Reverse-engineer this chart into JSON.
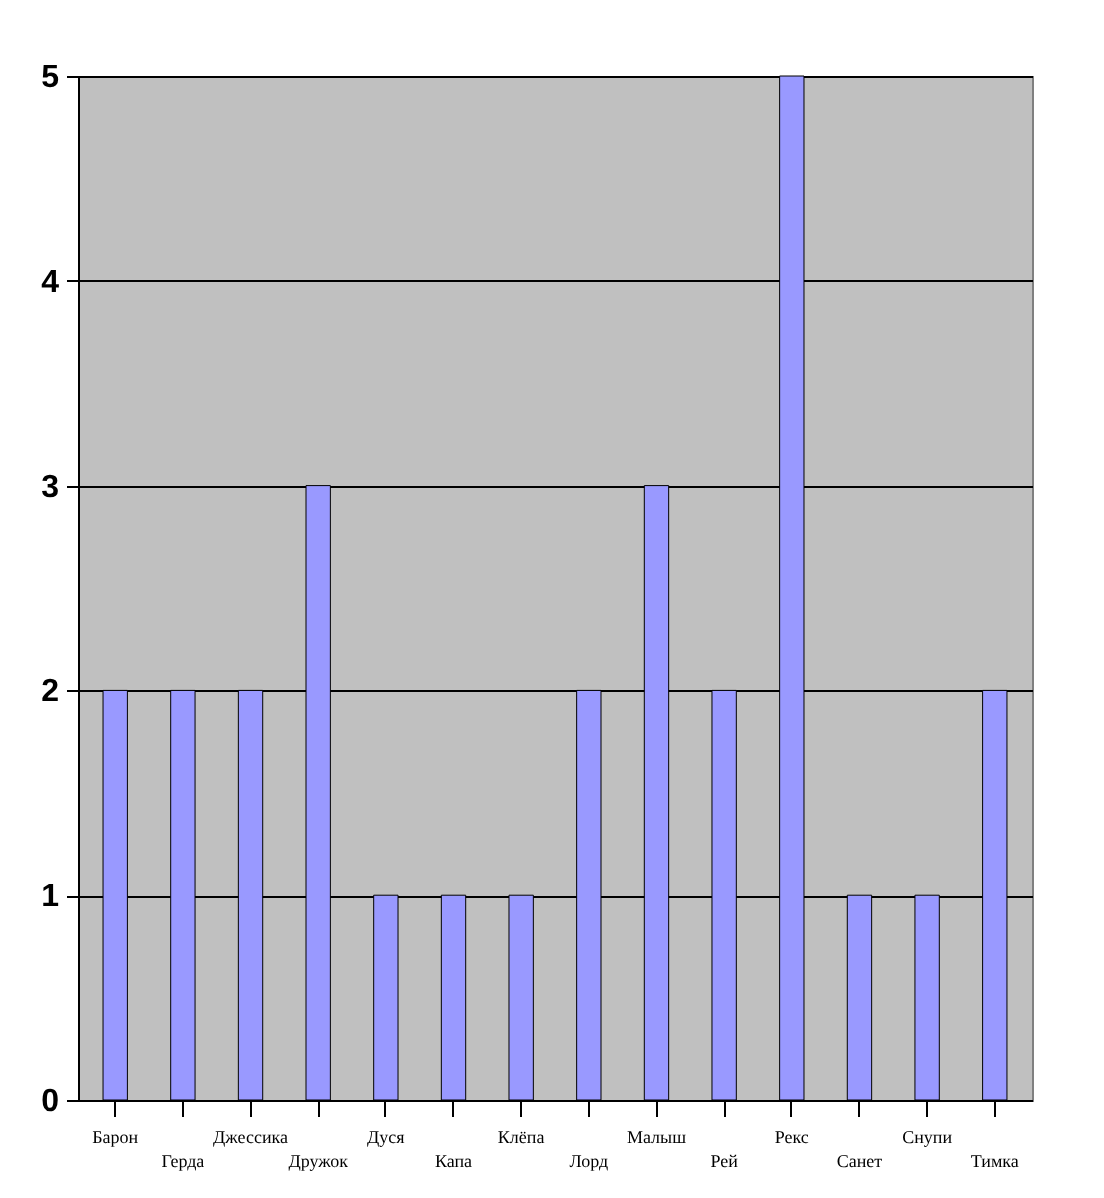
{
  "chart_data": {
    "type": "bar",
    "categories": [
      "Барон",
      "Герда",
      "Джессика",
      "Дружок",
      "Дуся",
      "Капа",
      "Клёпа",
      "Лорд",
      "Малыш",
      "Рей",
      "Рекс",
      "Санет",
      "Снупи",
      "Тимка"
    ],
    "values": [
      2,
      2,
      2,
      3,
      1,
      1,
      1,
      2,
      3,
      2,
      5,
      1,
      1,
      2
    ],
    "color": "#9999ff",
    "ylim": [
      0,
      5
    ],
    "yticks": [
      0,
      1,
      2,
      3,
      4,
      5
    ],
    "grid": "y"
  }
}
